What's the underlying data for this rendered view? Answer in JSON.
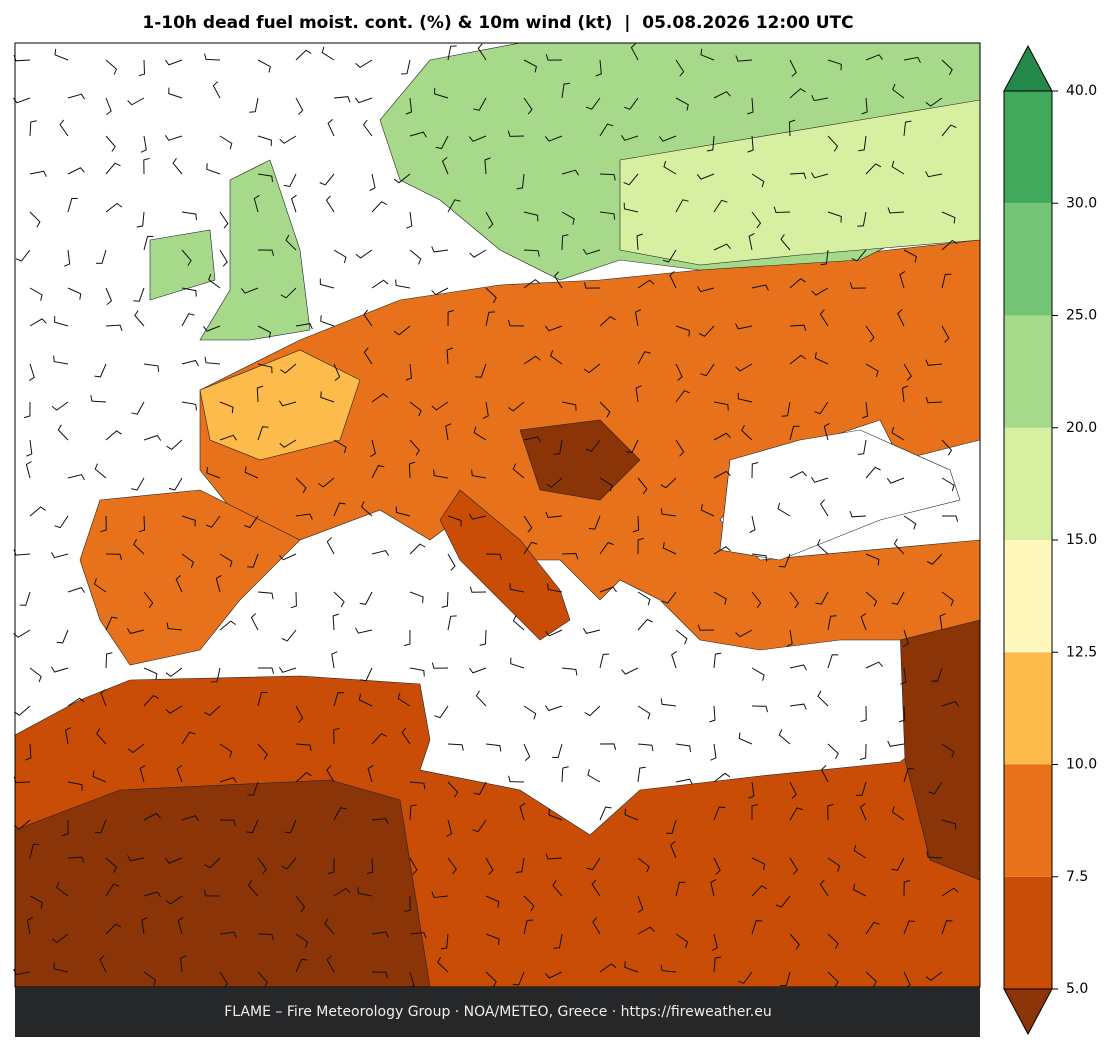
{
  "header": {
    "title": "1-10h dead fuel moist. cont. (%) & 10m wind (kt)  |  05.08.2026 12:00 UTC"
  },
  "footer": {
    "credit": "FLAME – Fire Meteorology Group · NOA/METEO, Greece · https://fireweather.eu"
  },
  "colorbar": {
    "ticks": [
      {
        "value": 5,
        "label": "5.0"
      },
      7.5,
      {
        "value": 10,
        "label": "10.0"
      },
      12.5,
      {
        "value": 15,
        "label": "15.0"
      },
      {
        "value": 20,
        "label": "20.0"
      },
      {
        "value": 25,
        "label": "25.0"
      },
      {
        "value": 30,
        "label": "30.0"
      },
      {
        "value": 40,
        "label": "40.0"
      }
    ],
    "colors": [
      "#c94d07",
      "#e8711c",
      "#fdbb4b",
      "#fff7bc",
      "#d7efa0",
      "#a6d98a",
      "#74c476",
      "#41a95b"
    ],
    "under_color": "#8b3408",
    "over_color": "#23884a"
  }
}
